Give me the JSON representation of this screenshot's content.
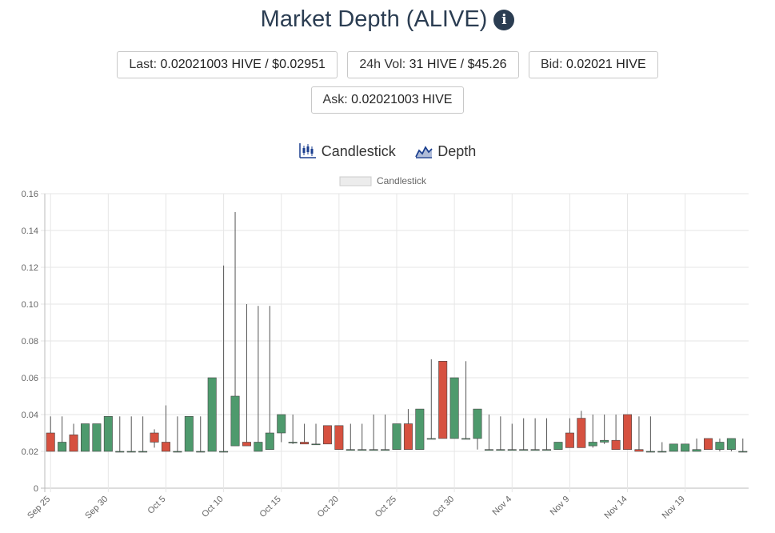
{
  "header": {
    "title": "Market Depth (ALIVE)",
    "info_icon": "info-circle-icon"
  },
  "stats": {
    "last_label": "Last:",
    "last_value": "0.02021003 HIVE / $0.02951",
    "vol_label": "24h Vol:",
    "vol_value": "31 HIVE / $45.26",
    "bid_label": "Bid:",
    "bid_value": "0.02021 HIVE",
    "ask_label": "Ask:",
    "ask_value": "0.02021003 HIVE"
  },
  "view_tabs": {
    "candlestick_label": "Candlestick",
    "candlestick_icon": "candlestick-icon",
    "depth_label": "Depth",
    "depth_icon": "depth-chart-icon"
  },
  "chart_data": {
    "type": "candlestick",
    "legend": [
      "Candlestick"
    ],
    "legend_position": "top",
    "ylim": [
      0,
      0.16
    ],
    "y_ticks": [
      "0",
      "0.02",
      "0.04",
      "0.06",
      "0.08",
      "0.10",
      "0.12",
      "0.14",
      "0.16"
    ],
    "x_tick_labels": [
      {
        "index": 0,
        "label": "Sep 25"
      },
      {
        "index": 5,
        "label": "Sep 30"
      },
      {
        "index": 10,
        "label": "Oct 5"
      },
      {
        "index": 15,
        "label": "Oct 10"
      },
      {
        "index": 20,
        "label": "Oct 15"
      },
      {
        "index": 25,
        "label": "Oct 20"
      },
      {
        "index": 30,
        "label": "Oct 25"
      },
      {
        "index": 35,
        "label": "Oct 30"
      },
      {
        "index": 40,
        "label": "Nov 4"
      },
      {
        "index": 45,
        "label": "Nov 9"
      },
      {
        "index": 50,
        "label": "Nov 14"
      },
      {
        "index": 55,
        "label": "Nov 19"
      }
    ],
    "grid": true,
    "colors": {
      "up": "#4e9a6d",
      "down": "#d65140",
      "grid": "#e6e6e6"
    },
    "candles": [
      {
        "date": "Sep 25",
        "o": 0.03,
        "h": 0.039,
        "l": 0.02,
        "c": 0.02
      },
      {
        "date": "Sep 26",
        "o": 0.02,
        "h": 0.039,
        "l": 0.02,
        "c": 0.025
      },
      {
        "date": "Sep 27",
        "o": 0.029,
        "h": 0.035,
        "l": 0.02,
        "c": 0.02
      },
      {
        "date": "Sep 28",
        "o": 0.02,
        "h": 0.035,
        "l": 0.02,
        "c": 0.035
      },
      {
        "date": "Sep 29",
        "o": 0.02,
        "h": 0.035,
        "l": 0.02,
        "c": 0.035
      },
      {
        "date": "Sep 30",
        "o": 0.02,
        "h": 0.039,
        "l": 0.02,
        "c": 0.039
      },
      {
        "date": "Oct 1",
        "o": 0.02,
        "h": 0.039,
        "l": 0.02,
        "c": 0.02
      },
      {
        "date": "Oct 2",
        "o": 0.02,
        "h": 0.039,
        "l": 0.02,
        "c": 0.02
      },
      {
        "date": "Oct 3",
        "o": 0.02,
        "h": 0.039,
        "l": 0.02,
        "c": 0.02
      },
      {
        "date": "Oct 4",
        "o": 0.03,
        "h": 0.032,
        "l": 0.022,
        "c": 0.025
      },
      {
        "date": "Oct 5",
        "o": 0.025,
        "h": 0.045,
        "l": 0.02,
        "c": 0.02
      },
      {
        "date": "Oct 6",
        "o": 0.02,
        "h": 0.039,
        "l": 0.02,
        "c": 0.02
      },
      {
        "date": "Oct 7",
        "o": 0.02,
        "h": 0.039,
        "l": 0.02,
        "c": 0.039
      },
      {
        "date": "Oct 8",
        "o": 0.02,
        "h": 0.039,
        "l": 0.02,
        "c": 0.02
      },
      {
        "date": "Oct 9",
        "o": 0.02,
        "h": 0.06,
        "l": 0.02,
        "c": 0.06
      },
      {
        "date": "Oct 10",
        "o": 0.02,
        "h": 0.121,
        "l": 0.02,
        "c": 0.02
      },
      {
        "date": "Oct 11",
        "o": 0.023,
        "h": 0.15,
        "l": 0.023,
        "c": 0.05
      },
      {
        "date": "Oct 12",
        "o": 0.025,
        "h": 0.1,
        "l": 0.023,
        "c": 0.023
      },
      {
        "date": "Oct 13",
        "o": 0.02,
        "h": 0.099,
        "l": 0.02,
        "c": 0.025
      },
      {
        "date": "Oct 14",
        "o": 0.021,
        "h": 0.099,
        "l": 0.021,
        "c": 0.03
      },
      {
        "date": "Oct 15",
        "o": 0.03,
        "h": 0.04,
        "l": 0.025,
        "c": 0.04
      },
      {
        "date": "Oct 16",
        "o": 0.025,
        "h": 0.04,
        "l": 0.024,
        "c": 0.025
      },
      {
        "date": "Oct 17",
        "o": 0.025,
        "h": 0.035,
        "l": 0.024,
        "c": 0.024
      },
      {
        "date": "Oct 18",
        "o": 0.024,
        "h": 0.035,
        "l": 0.024,
        "c": 0.024
      },
      {
        "date": "Oct 19",
        "o": 0.034,
        "h": 0.034,
        "l": 0.024,
        "c": 0.024
      },
      {
        "date": "Oct 20",
        "o": 0.034,
        "h": 0.034,
        "l": 0.021,
        "c": 0.021
      },
      {
        "date": "Oct 21",
        "o": 0.021,
        "h": 0.035,
        "l": 0.021,
        "c": 0.021
      },
      {
        "date": "Oct 22",
        "o": 0.021,
        "h": 0.035,
        "l": 0.021,
        "c": 0.021
      },
      {
        "date": "Oct 23",
        "o": 0.021,
        "h": 0.04,
        "l": 0.021,
        "c": 0.021
      },
      {
        "date": "Oct 24",
        "o": 0.021,
        "h": 0.04,
        "l": 0.021,
        "c": 0.021
      },
      {
        "date": "Oct 25",
        "o": 0.021,
        "h": 0.035,
        "l": 0.021,
        "c": 0.035
      },
      {
        "date": "Oct 26",
        "o": 0.035,
        "h": 0.043,
        "l": 0.021,
        "c": 0.021
      },
      {
        "date": "Oct 27",
        "o": 0.021,
        "h": 0.043,
        "l": 0.021,
        "c": 0.043
      },
      {
        "date": "Oct 28",
        "o": 0.027,
        "h": 0.07,
        "l": 0.027,
        "c": 0.027
      },
      {
        "date": "Oct 29",
        "o": 0.069,
        "h": 0.069,
        "l": 0.027,
        "c": 0.027
      },
      {
        "date": "Oct 30",
        "o": 0.027,
        "h": 0.06,
        "l": 0.027,
        "c": 0.06
      },
      {
        "date": "Oct 31",
        "o": 0.027,
        "h": 0.069,
        "l": 0.027,
        "c": 0.027
      },
      {
        "date": "Nov 1",
        "o": 0.027,
        "h": 0.043,
        "l": 0.021,
        "c": 0.043
      },
      {
        "date": "Nov 2",
        "o": 0.021,
        "h": 0.04,
        "l": 0.021,
        "c": 0.021
      },
      {
        "date": "Nov 3",
        "o": 0.021,
        "h": 0.039,
        "l": 0.021,
        "c": 0.021
      },
      {
        "date": "Nov 4",
        "o": 0.021,
        "h": 0.035,
        "l": 0.021,
        "c": 0.021
      },
      {
        "date": "Nov 5",
        "o": 0.021,
        "h": 0.038,
        "l": 0.021,
        "c": 0.021
      },
      {
        "date": "Nov 6",
        "o": 0.021,
        "h": 0.038,
        "l": 0.021,
        "c": 0.021
      },
      {
        "date": "Nov 7",
        "o": 0.021,
        "h": 0.038,
        "l": 0.021,
        "c": 0.021
      },
      {
        "date": "Nov 8",
        "o": 0.021,
        "h": 0.025,
        "l": 0.021,
        "c": 0.025
      },
      {
        "date": "Nov 9",
        "o": 0.03,
        "h": 0.038,
        "l": 0.022,
        "c": 0.022
      },
      {
        "date": "Nov 10",
        "o": 0.038,
        "h": 0.042,
        "l": 0.022,
        "c": 0.022
      },
      {
        "date": "Nov 11",
        "o": 0.023,
        "h": 0.04,
        "l": 0.022,
        "c": 0.025
      },
      {
        "date": "Nov 12",
        "o": 0.025,
        "h": 0.04,
        "l": 0.024,
        "c": 0.026
      },
      {
        "date": "Nov 13",
        "o": 0.026,
        "h": 0.04,
        "l": 0.021,
        "c": 0.021
      },
      {
        "date": "Nov 14",
        "o": 0.04,
        "h": 0.04,
        "l": 0.021,
        "c": 0.021
      },
      {
        "date": "Nov 15",
        "o": 0.021,
        "h": 0.039,
        "l": 0.02,
        "c": 0.02
      },
      {
        "date": "Nov 16",
        "o": 0.02,
        "h": 0.039,
        "l": 0.02,
        "c": 0.02
      },
      {
        "date": "Nov 17",
        "o": 0.02,
        "h": 0.025,
        "l": 0.02,
        "c": 0.02
      },
      {
        "date": "Nov 18",
        "o": 0.02,
        "h": 0.024,
        "l": 0.02,
        "c": 0.024
      },
      {
        "date": "Nov 19",
        "o": 0.02,
        "h": 0.024,
        "l": 0.02,
        "c": 0.024
      },
      {
        "date": "Nov 20",
        "o": 0.02,
        "h": 0.027,
        "l": 0.02,
        "c": 0.021
      },
      {
        "date": "Nov 21",
        "o": 0.027,
        "h": 0.027,
        "l": 0.021,
        "c": 0.021
      },
      {
        "date": "Nov 22",
        "o": 0.021,
        "h": 0.027,
        "l": 0.02,
        "c": 0.025
      },
      {
        "date": "Nov 23",
        "o": 0.021,
        "h": 0.027,
        "l": 0.02,
        "c": 0.027
      },
      {
        "date": "Nov 24",
        "o": 0.02,
        "h": 0.027,
        "l": 0.02,
        "c": 0.02
      }
    ]
  }
}
